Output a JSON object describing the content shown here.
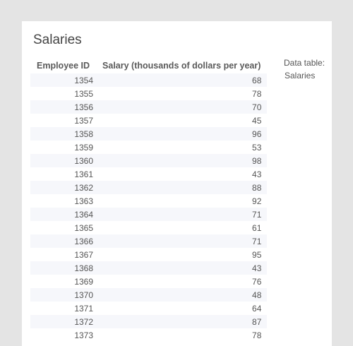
{
  "title": "Salaries",
  "table": {
    "headers": [
      "Employee ID",
      "Salary (thousands of dollars per year)"
    ],
    "rows": [
      [
        "1354",
        "68"
      ],
      [
        "1355",
        "78"
      ],
      [
        "1356",
        "70"
      ],
      [
        "1357",
        "45"
      ],
      [
        "1358",
        "96"
      ],
      [
        "1359",
        "53"
      ],
      [
        "1360",
        "98"
      ],
      [
        "1361",
        "43"
      ],
      [
        "1362",
        "88"
      ],
      [
        "1363",
        "92"
      ],
      [
        "1364",
        "71"
      ],
      [
        "1365",
        "61"
      ],
      [
        "1366",
        "71"
      ],
      [
        "1367",
        "95"
      ],
      [
        "1368",
        "43"
      ],
      [
        "1369",
        "76"
      ],
      [
        "1370",
        "48"
      ],
      [
        "1371",
        "64"
      ],
      [
        "1372",
        "87"
      ],
      [
        "1373",
        "78"
      ]
    ]
  },
  "side": {
    "label": "Data table:",
    "value": "Salaries"
  }
}
